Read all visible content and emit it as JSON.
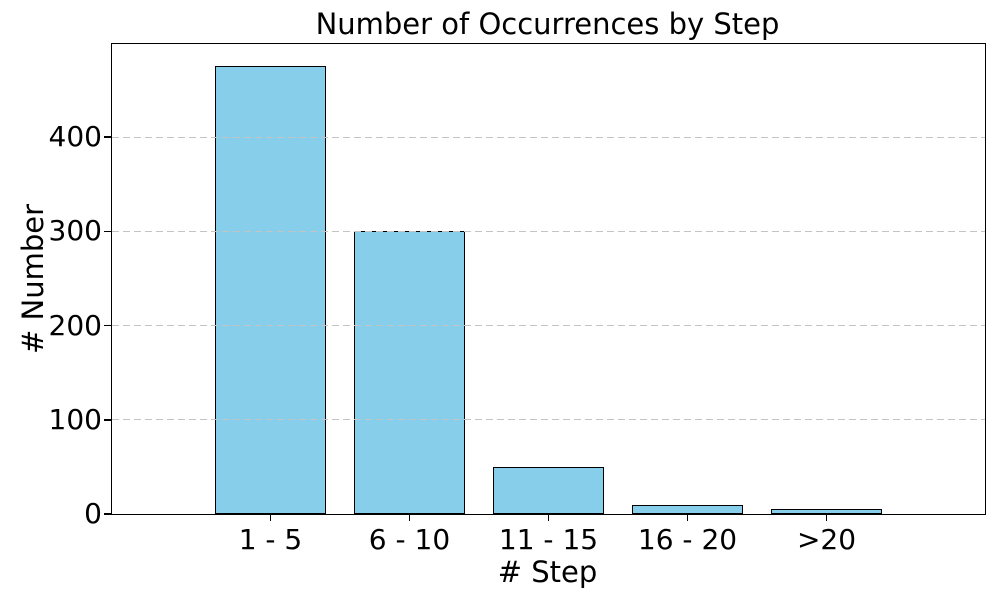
{
  "chart_data": {
    "type": "bar",
    "title": "Number of Occurrences by Step",
    "xlabel": "# Step",
    "ylabel": "# Number",
    "categories": [
      "1 - 5",
      "6 - 10",
      "11 - 15",
      "16 - 20",
      ">20"
    ],
    "values": [
      475,
      300,
      50,
      10,
      5
    ],
    "yticks": [
      0,
      100,
      200,
      300,
      400
    ],
    "ylim": [
      0,
      498.75
    ],
    "bar_color": "#87CEEB",
    "bar_edge_color": "#000000",
    "grid": "horizontal dashed, drawn over bars",
    "grid_color": "#c4c4c4",
    "legend": "none",
    "background_color": "#ffffff",
    "text_color": "#000000"
  }
}
